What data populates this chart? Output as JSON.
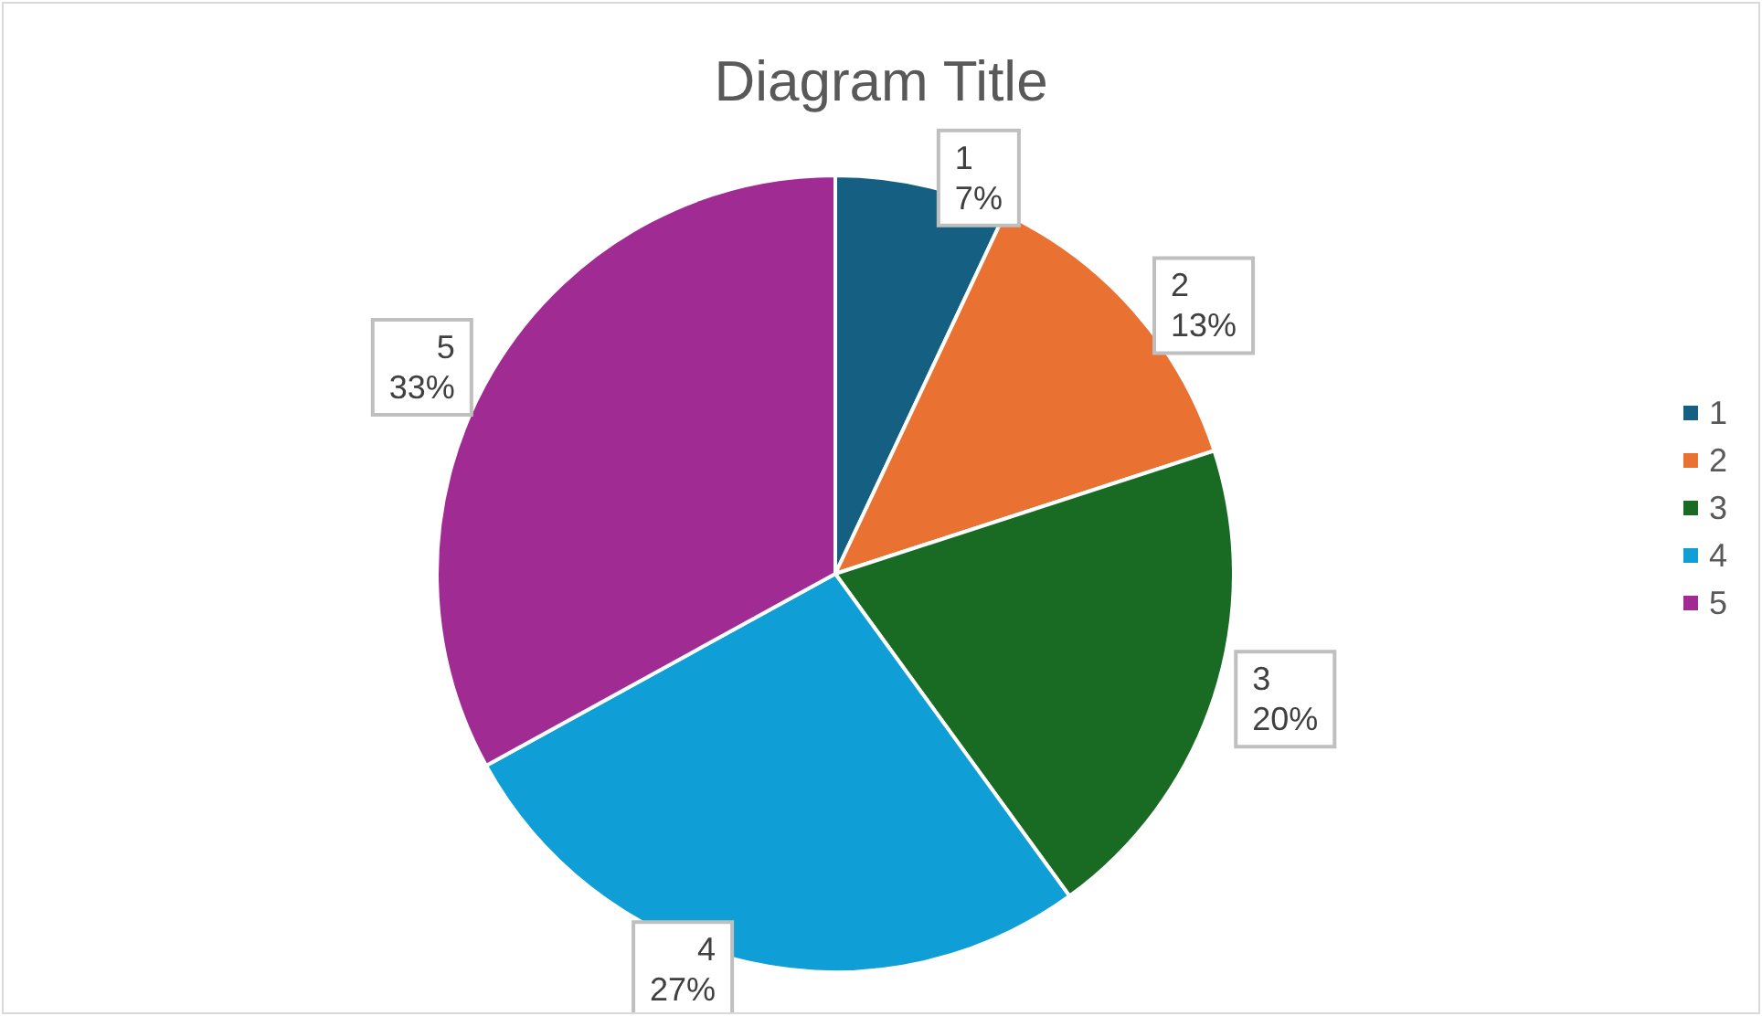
{
  "chart_data": {
    "type": "pie",
    "title": "Diagram Title",
    "categories": [
      "1",
      "2",
      "3",
      "4",
      "5"
    ],
    "values": [
      7,
      13,
      20,
      27,
      33
    ],
    "value_labels": [
      "7%",
      "13%",
      "20%",
      "27%",
      "33%"
    ],
    "colors": [
      "#156082",
      "#e97132",
      "#196b24",
      "#0f9ed5",
      "#a02b93"
    ],
    "legend": "right"
  }
}
